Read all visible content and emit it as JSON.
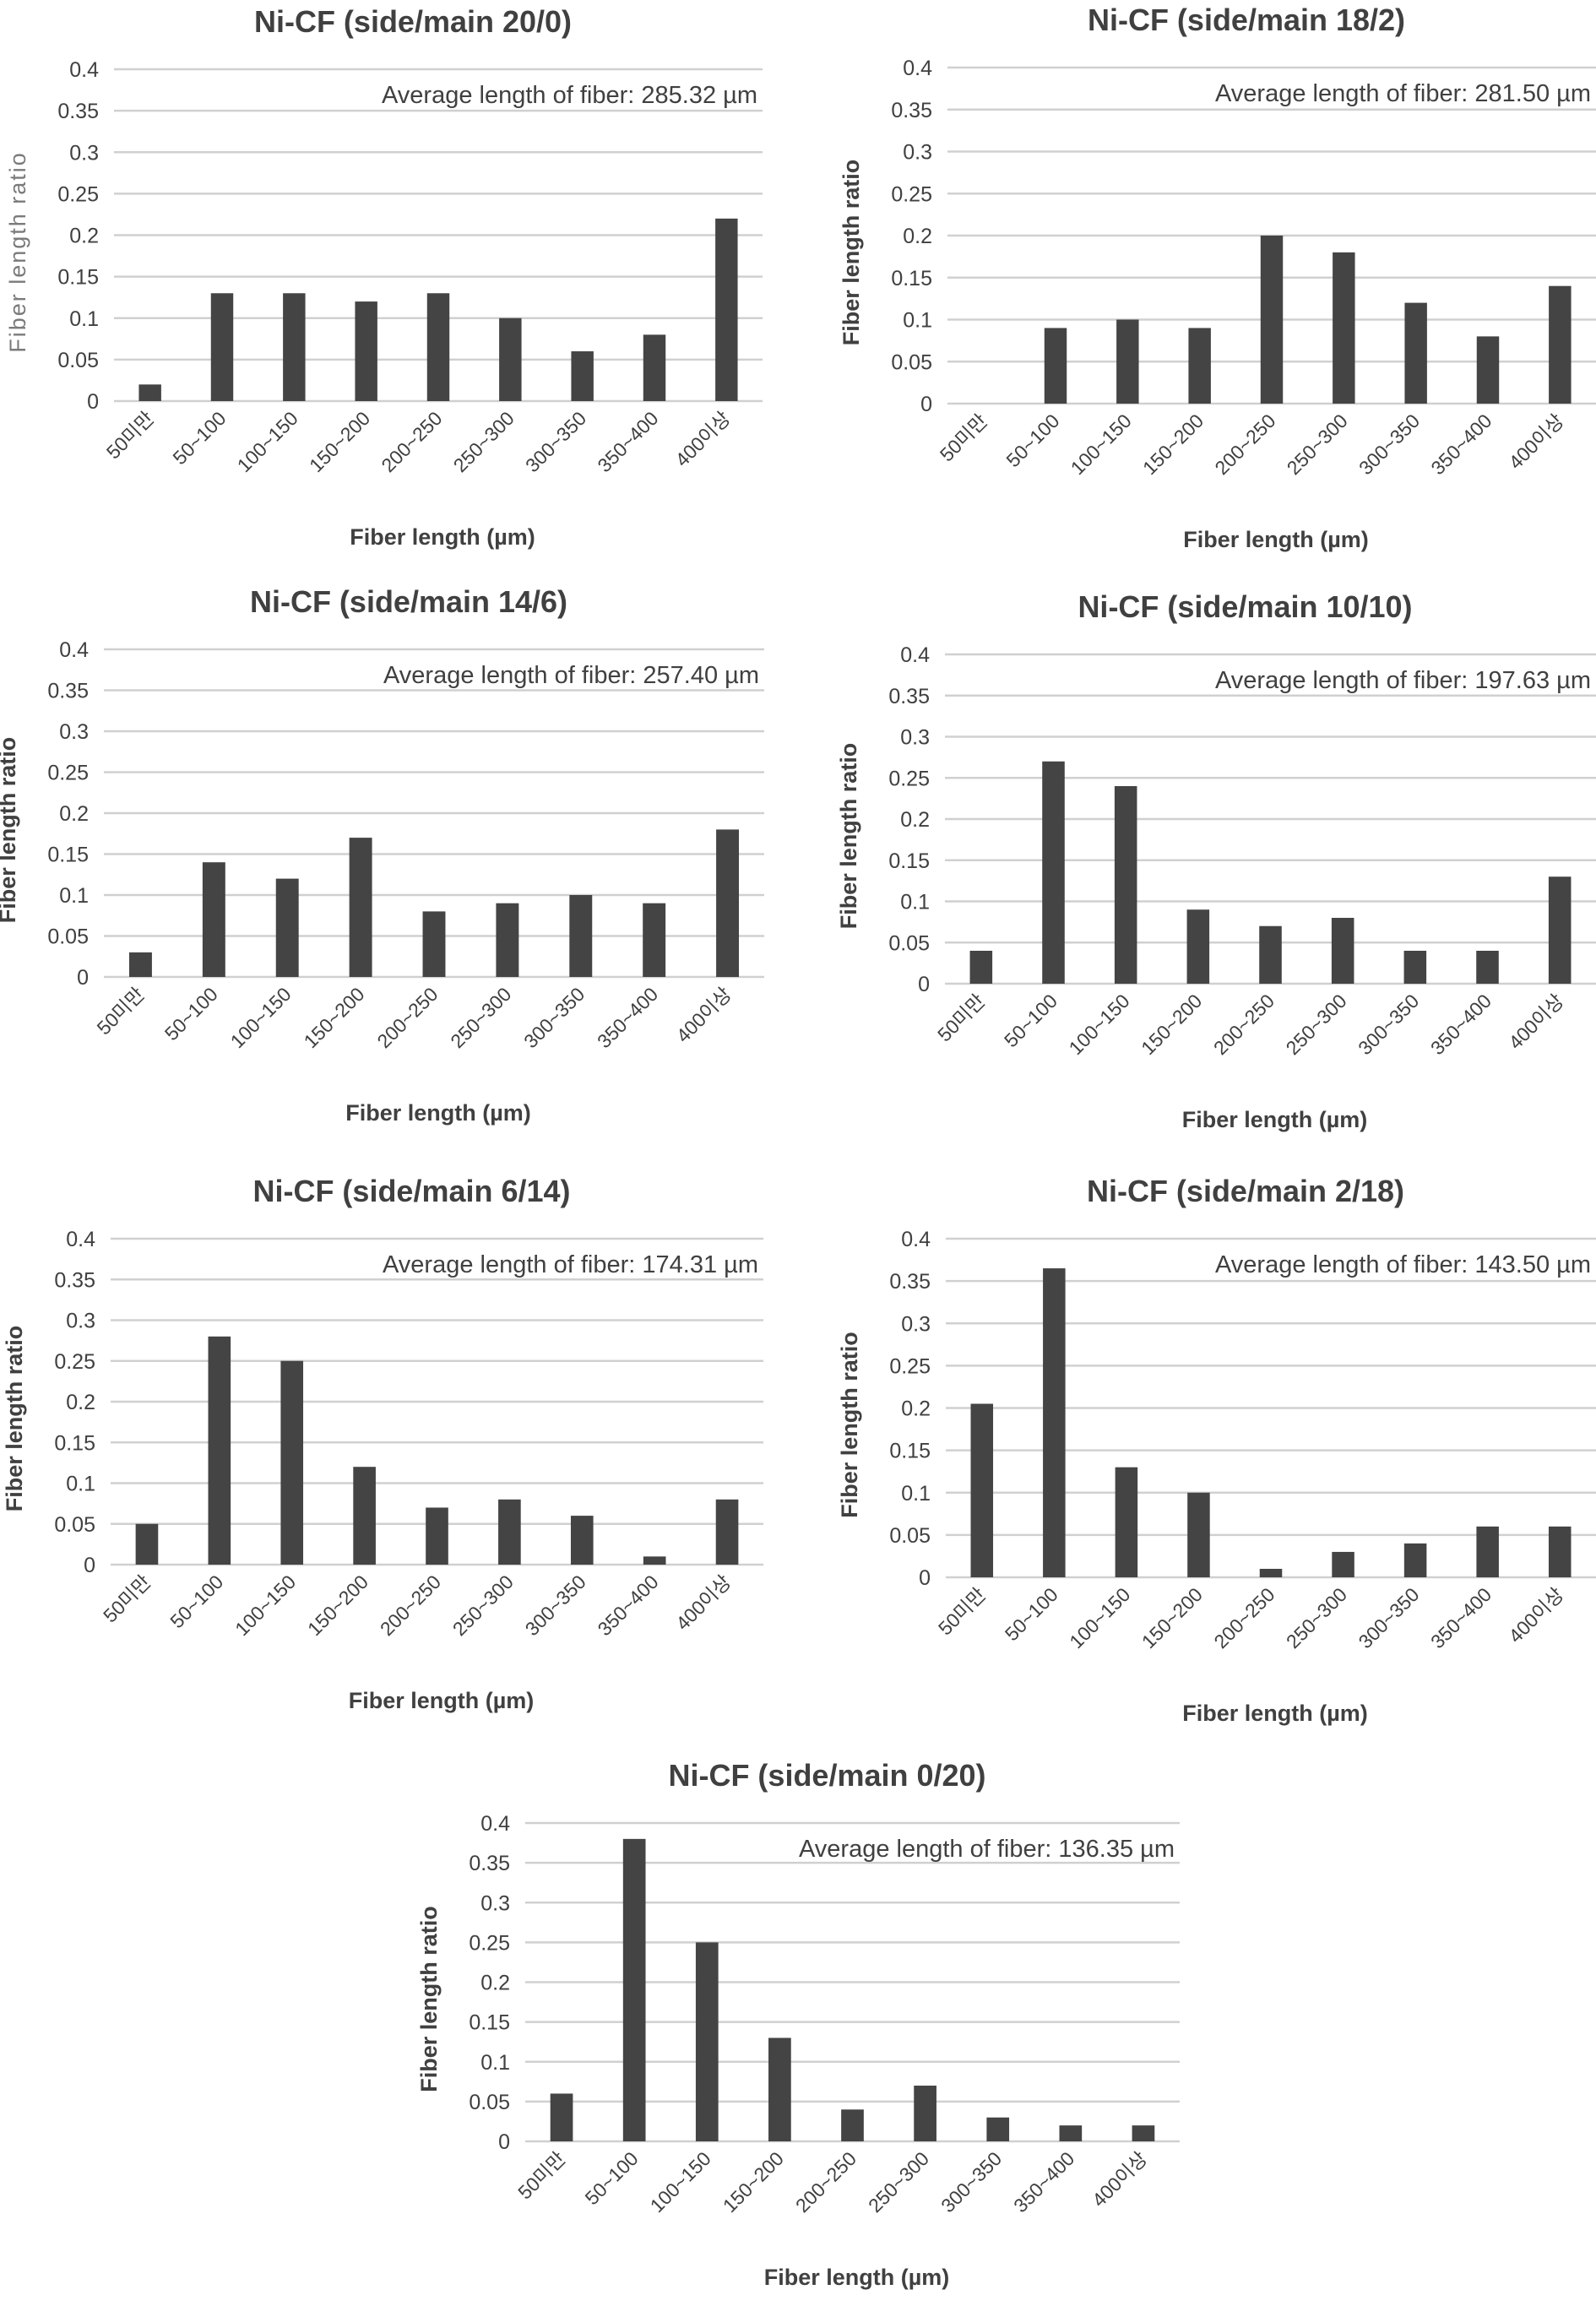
{
  "figure": {
    "bar_color": "#444444",
    "grid_color": "#d0d0d0",
    "text_color": "#404040"
  },
  "chart_data": [
    {
      "id": "c1",
      "type": "bar",
      "title": "Ni-CF (side/main 20/0)",
      "xlabel": "Fiber length (µm)",
      "ylabel": "Fiber length ratio",
      "ylabel_style": "light",
      "annotation": "Average length of fiber: 285.32 µm",
      "categories": [
        "50미만",
        "50~100",
        "100~150",
        "150~200",
        "200~250",
        "250~300",
        "300~350",
        "350~400",
        "400이상"
      ],
      "values": [
        0.02,
        0.13,
        0.13,
        0.12,
        0.13,
        0.1,
        0.06,
        0.08,
        0.22
      ],
      "yticks": [
        "0",
        "0.05",
        "0.1",
        "0.15",
        "0.2",
        "0.25",
        "0.3",
        "0.35",
        "0.4"
      ],
      "ylim": [
        0,
        0.4
      ],
      "grid": true,
      "legend": "none"
    },
    {
      "id": "c2",
      "type": "bar",
      "title": "Ni-CF (side/main 18/2)",
      "xlabel": "Fiber length (µm)",
      "ylabel": "Fiber length ratio",
      "ylabel_style": "bold",
      "annotation": "Average length of fiber: 281.50 µm",
      "categories": [
        "50미만",
        "50~100",
        "100~150",
        "150~200",
        "200~250",
        "250~300",
        "300~350",
        "350~400",
        "400이상"
      ],
      "values": [
        0.0,
        0.09,
        0.1,
        0.09,
        0.2,
        0.18,
        0.12,
        0.08,
        0.14
      ],
      "yticks": [
        "0",
        "0.05",
        "0.1",
        "0.15",
        "0.2",
        "0.25",
        "0.3",
        "0.35",
        "0.4"
      ],
      "ylim": [
        0,
        0.4
      ],
      "grid": true,
      "legend": "none"
    },
    {
      "id": "c3",
      "type": "bar",
      "title": "Ni-CF (side/main 14/6)",
      "xlabel": "Fiber length (µm)",
      "ylabel": "Fiber length ratio",
      "ylabel_style": "bold",
      "annotation": "Average length of fiber: 257.40 µm",
      "categories": [
        "50미만",
        "50~100",
        "100~150",
        "150~200",
        "200~250",
        "250~300",
        "300~350",
        "350~400",
        "400이상"
      ],
      "values": [
        0.03,
        0.14,
        0.12,
        0.17,
        0.08,
        0.09,
        0.1,
        0.09,
        0.18
      ],
      "yticks": [
        "0",
        "0.05",
        "0.1",
        "0.15",
        "0.2",
        "0.25",
        "0.3",
        "0.35",
        "0.4"
      ],
      "ylim": [
        0,
        0.4
      ],
      "grid": true,
      "legend": "none"
    },
    {
      "id": "c4",
      "type": "bar",
      "title": "Ni-CF (side/main 10/10)",
      "xlabel": "Fiber length (µm)",
      "ylabel": "Fiber length ratio",
      "ylabel_style": "bold",
      "annotation": "Average length of fiber: 197.63 µm",
      "categories": [
        "50미만",
        "50~100",
        "100~150",
        "150~200",
        "200~250",
        "250~300",
        "300~350",
        "350~400",
        "400이상"
      ],
      "values": [
        0.04,
        0.27,
        0.24,
        0.09,
        0.07,
        0.08,
        0.04,
        0.04,
        0.13
      ],
      "yticks": [
        "0",
        "0.05",
        "0.1",
        "0.15",
        "0.2",
        "0.25",
        "0.3",
        "0.35",
        "0.4"
      ],
      "ylim": [
        0,
        0.4
      ],
      "grid": true,
      "legend": "none"
    },
    {
      "id": "c5",
      "type": "bar",
      "title": "Ni-CF (side/main 6/14)",
      "xlabel": "Fiber length (µm)",
      "ylabel": "Fiber length ratio",
      "ylabel_style": "bold",
      "annotation": "Average length of fiber: 174.31 µm",
      "categories": [
        "50미만",
        "50~100",
        "100~150",
        "150~200",
        "200~250",
        "250~300",
        "300~350",
        "350~400",
        "400이상"
      ],
      "values": [
        0.05,
        0.28,
        0.25,
        0.12,
        0.07,
        0.08,
        0.06,
        0.01,
        0.08
      ],
      "yticks": [
        "0",
        "0.05",
        "0.1",
        "0.15",
        "0.2",
        "0.25",
        "0.3",
        "0.35",
        "0.4"
      ],
      "ylim": [
        0,
        0.4
      ],
      "grid": true,
      "legend": "none"
    },
    {
      "id": "c6",
      "type": "bar",
      "title": "Ni-CF (side/main 2/18)",
      "xlabel": "Fiber length (µm)",
      "ylabel": "Fiber length ratio",
      "ylabel_style": "bold",
      "annotation": "Average length of fiber: 143.50 µm",
      "categories": [
        "50미만",
        "50~100",
        "100~150",
        "150~200",
        "200~250",
        "250~300",
        "300~350",
        "350~400",
        "400이상"
      ],
      "values": [
        0.205,
        0.365,
        0.13,
        0.1,
        0.01,
        0.03,
        0.04,
        0.06,
        0.06
      ],
      "yticks": [
        "0",
        "0.05",
        "0.1",
        "0.15",
        "0.2",
        "0.25",
        "0.3",
        "0.35",
        "0.4"
      ],
      "ylim": [
        0,
        0.4
      ],
      "grid": true,
      "legend": "none"
    },
    {
      "id": "c7",
      "type": "bar",
      "title": "Ni-CF (side/main 0/20)",
      "xlabel": "Fiber length (µm)",
      "ylabel": "Fiber length ratio",
      "ylabel_style": "bold",
      "annotation": "Average length of fiber: 136.35 µm",
      "categories": [
        "50미만",
        "50~100",
        "100~150",
        "150~200",
        "200~250",
        "250~300",
        "300~350",
        "350~400",
        "400이상"
      ],
      "values": [
        0.06,
        0.38,
        0.25,
        0.13,
        0.04,
        0.07,
        0.03,
        0.02,
        0.02
      ],
      "yticks": [
        "0",
        "0.05",
        "0.1",
        "0.15",
        "0.2",
        "0.25",
        "0.3",
        "0.35",
        "0.4"
      ],
      "ylim": [
        0,
        0.4
      ],
      "grid": true,
      "legend": "none"
    }
  ]
}
